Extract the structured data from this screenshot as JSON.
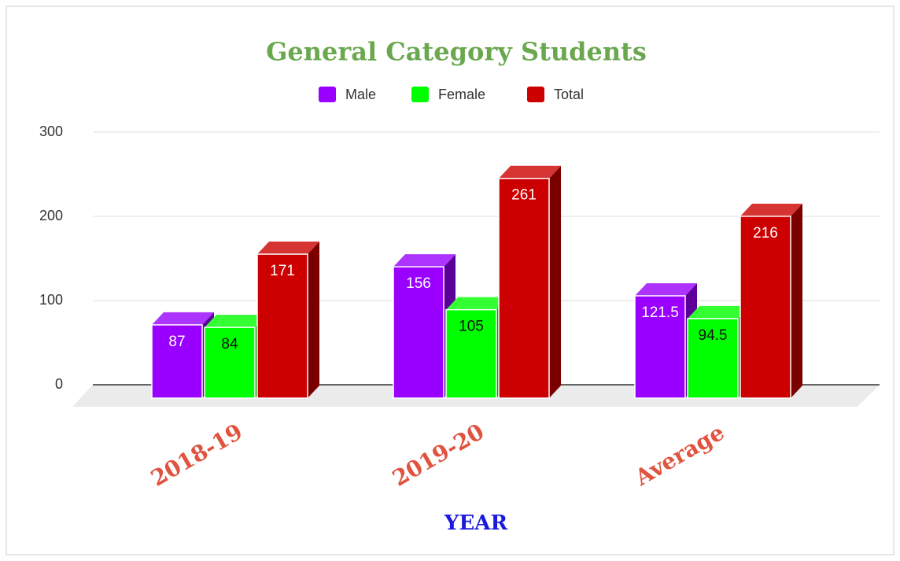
{
  "chart_data": {
    "type": "bar3d",
    "title": "General Category Students",
    "x_label": "YEAR",
    "categories": [
      "2018-19",
      "2019-20",
      "Average"
    ],
    "series": [
      {
        "name": "Male",
        "color": "#9900ff",
        "values": [
          87,
          156,
          121.5
        ]
      },
      {
        "name": "Female",
        "color": "#00ff00",
        "values": [
          84,
          105,
          94.5
        ]
      },
      {
        "name": "Total",
        "color": "#cc0000",
        "values": [
          171,
          261,
          216
        ]
      }
    ],
    "ylim": [
      0,
      300
    ],
    "yticks": [
      0,
      100,
      200,
      300
    ],
    "grid": true,
    "legend": "top"
  }
}
